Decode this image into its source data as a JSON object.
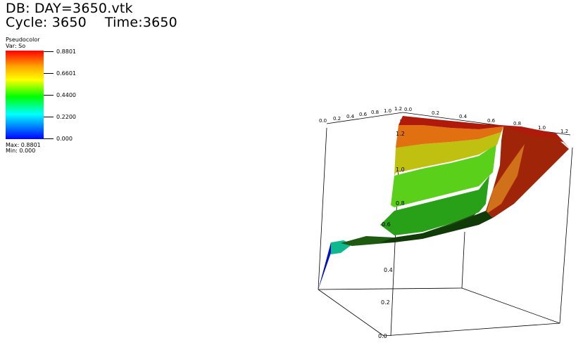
{
  "header": {
    "db": "DB: DAY=3650.vtk",
    "cycle": "Cycle: 3650",
    "time": "Time:3650"
  },
  "legend": {
    "plot_type": "Pseudocolor",
    "variable": "Var: So",
    "ticks": [
      "0.8801",
      "0.6601",
      "0.4400",
      "0.2200",
      "0.000"
    ],
    "max": "Max:  0.8801",
    "min": "Min:  0.000",
    "colors": [
      "#ff0000",
      "#ffa500",
      "#ffff00",
      "#00ff00",
      "#00ffff",
      "#0000ff"
    ]
  },
  "axes": {
    "top_left_labels": [
      "0.0",
      "0.2",
      "0.4",
      "0.6",
      "0.8",
      "1.0",
      "1.2"
    ],
    "top_right_labels": [
      "0.0",
      "0.2",
      "0.4",
      "0.6",
      "0.8",
      "1.0",
      "1.2"
    ],
    "vertical_labels": [
      "1.2",
      "1.0",
      "0.8",
      "0.6",
      "0.4",
      "0.2",
      "0.0"
    ]
  }
}
